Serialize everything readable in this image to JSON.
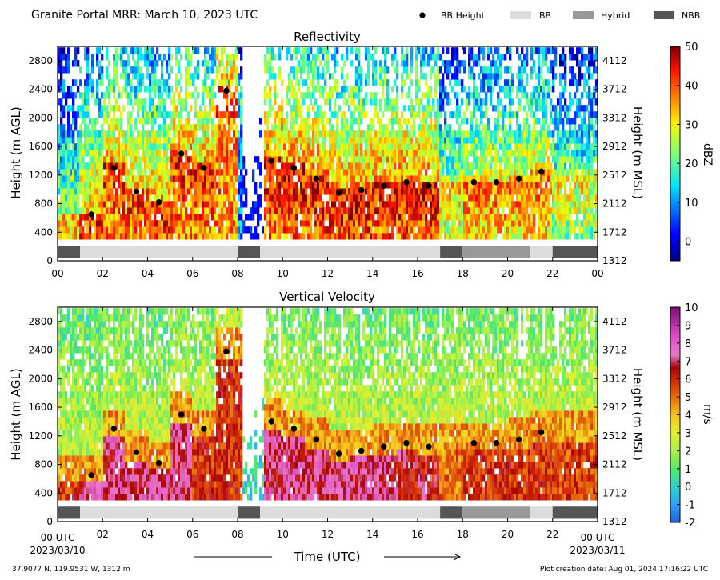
{
  "header": {
    "title": "Granite Portal MRR:  March 10, 2023 UTC",
    "legend": [
      {
        "label": "BB Height",
        "kind": "dot",
        "color": "#000000"
      },
      {
        "label": "BB",
        "kind": "rect",
        "color": "#dcdcdc"
      },
      {
        "label": "Hybrid",
        "kind": "rect",
        "color": "#999999"
      },
      {
        "label": "NBB",
        "kind": "rect",
        "color": "#555555"
      }
    ]
  },
  "footer": {
    "location": "37.9077 N, 119.9531 W, 1312 m",
    "creation": "Plot creation date: Aug 01, 2024 17:16:22 UTC",
    "xlabel": "Time (UTC)",
    "start_utc": "00 UTC",
    "start_date": "2023/03/10",
    "end_utc": "00 UTC",
    "end_date": "2023/03/11"
  },
  "chart_data": [
    {
      "type": "heatmap",
      "title": "Reflectivity",
      "ylabel": "Height (m AGL)",
      "y2label": "Height (m MSL)",
      "colorbar_label": "dBZ",
      "colorbar_range": [
        -5,
        50
      ],
      "colorbar_ticks": [
        "0",
        "10",
        "20",
        "30",
        "40",
        "50"
      ],
      "colorbar_tick_values": [
        0,
        10,
        20,
        30,
        40,
        50
      ],
      "colorscale": "jet",
      "xlim": [
        0,
        24
      ],
      "ylim": [
        0,
        3000
      ],
      "data_ylim": [
        300,
        2950
      ],
      "x_ticks": [
        "00",
        "02",
        "04",
        "06",
        "08",
        "10",
        "12",
        "14",
        "16",
        "18",
        "20",
        "22",
        "00"
      ],
      "y_ticks": [
        0,
        400,
        800,
        1200,
        1600,
        2000,
        2400,
        2800
      ],
      "y2_ticks": [
        "1312",
        "1712",
        "2112",
        "2512",
        "2912",
        "3312",
        "3712",
        "4112"
      ],
      "no_data_gaps": [
        [
          8.2,
          9.2
        ]
      ],
      "bb_heights": [
        {
          "x": 1.5,
          "y": 650
        },
        {
          "x": 2.5,
          "y": 1300
        },
        {
          "x": 3.5,
          "y": 970
        },
        {
          "x": 4.5,
          "y": 820
        },
        {
          "x": 5.5,
          "y": 1500
        },
        {
          "x": 6.5,
          "y": 1300
        },
        {
          "x": 7.5,
          "y": 2380
        },
        {
          "x": 9.5,
          "y": 1400
        },
        {
          "x": 10.5,
          "y": 1300
        },
        {
          "x": 11.5,
          "y": 1150
        },
        {
          "x": 12.5,
          "y": 950
        },
        {
          "x": 13.5,
          "y": 990
        },
        {
          "x": 14.5,
          "y": 1050
        },
        {
          "x": 15.5,
          "y": 1100
        },
        {
          "x": 16.5,
          "y": 1050
        },
        {
          "x": 18.5,
          "y": 1100
        },
        {
          "x": 19.5,
          "y": 1100
        },
        {
          "x": 20.5,
          "y": 1150
        },
        {
          "x": 21.5,
          "y": 1250
        }
      ],
      "bb_type_segments": [
        {
          "start": 0,
          "end": 1,
          "type": "NBB"
        },
        {
          "start": 1,
          "end": 8,
          "type": "BB"
        },
        {
          "start": 8,
          "end": 9,
          "type": "NBB"
        },
        {
          "start": 9,
          "end": 17,
          "type": "BB"
        },
        {
          "start": 17,
          "end": 18,
          "type": "NBB"
        },
        {
          "start": 18,
          "end": 21,
          "type": "Hybrid"
        },
        {
          "start": 21,
          "end": 22,
          "type": "BB"
        },
        {
          "start": 22,
          "end": 24,
          "type": "NBB"
        }
      ]
    },
    {
      "type": "heatmap",
      "title": "Vertical Velocity",
      "ylabel": "Height (m AGL)",
      "y2label": "Height (m MSL)",
      "colorbar_label": "m/s",
      "colorbar_range": [
        -2,
        10
      ],
      "colorbar_ticks": [
        "-2",
        "-1",
        "0",
        "1",
        "2",
        "3",
        "4",
        "5",
        "6",
        "7",
        "8",
        "9",
        "10"
      ],
      "colorbar_tick_values": [
        -2,
        -1,
        0,
        1,
        2,
        3,
        4,
        5,
        6,
        7,
        8,
        9,
        10
      ],
      "colorscale": "velocity",
      "xlim": [
        0,
        24
      ],
      "ylim": [
        0,
        3000
      ],
      "data_ylim": [
        300,
        2950
      ],
      "x_ticks": [
        "02",
        "04",
        "06",
        "08",
        "10",
        "12",
        "14",
        "16",
        "18",
        "20",
        "22"
      ],
      "y_ticks": [
        0,
        400,
        800,
        1200,
        1600,
        2000,
        2400,
        2800
      ],
      "y2_ticks": [
        "1312",
        "1712",
        "2112",
        "2512",
        "2912",
        "3312",
        "3712",
        "4112"
      ],
      "no_data_gaps": [
        [
          8.2,
          9.2
        ]
      ],
      "bb_heights": [
        {
          "x": 1.5,
          "y": 650
        },
        {
          "x": 2.5,
          "y": 1300
        },
        {
          "x": 3.5,
          "y": 970
        },
        {
          "x": 4.5,
          "y": 820
        },
        {
          "x": 5.5,
          "y": 1500
        },
        {
          "x": 6.5,
          "y": 1300
        },
        {
          "x": 7.5,
          "y": 2380
        },
        {
          "x": 9.5,
          "y": 1400
        },
        {
          "x": 10.5,
          "y": 1300
        },
        {
          "x": 11.5,
          "y": 1150
        },
        {
          "x": 12.5,
          "y": 950
        },
        {
          "x": 13.5,
          "y": 990
        },
        {
          "x": 14.5,
          "y": 1050
        },
        {
          "x": 15.5,
          "y": 1100
        },
        {
          "x": 16.5,
          "y": 1050
        },
        {
          "x": 18.5,
          "y": 1100
        },
        {
          "x": 19.5,
          "y": 1100
        },
        {
          "x": 20.5,
          "y": 1150
        },
        {
          "x": 21.5,
          "y": 1250
        }
      ],
      "bb_type_segments": [
        {
          "start": 0,
          "end": 1,
          "type": "NBB"
        },
        {
          "start": 1,
          "end": 8,
          "type": "BB"
        },
        {
          "start": 8,
          "end": 9,
          "type": "NBB"
        },
        {
          "start": 9,
          "end": 17,
          "type": "BB"
        },
        {
          "start": 17,
          "end": 18,
          "type": "NBB"
        },
        {
          "start": 18,
          "end": 21,
          "type": "Hybrid"
        },
        {
          "start": 21,
          "end": 22,
          "type": "BB"
        },
        {
          "start": 22,
          "end": 24,
          "type": "NBB"
        }
      ]
    }
  ]
}
